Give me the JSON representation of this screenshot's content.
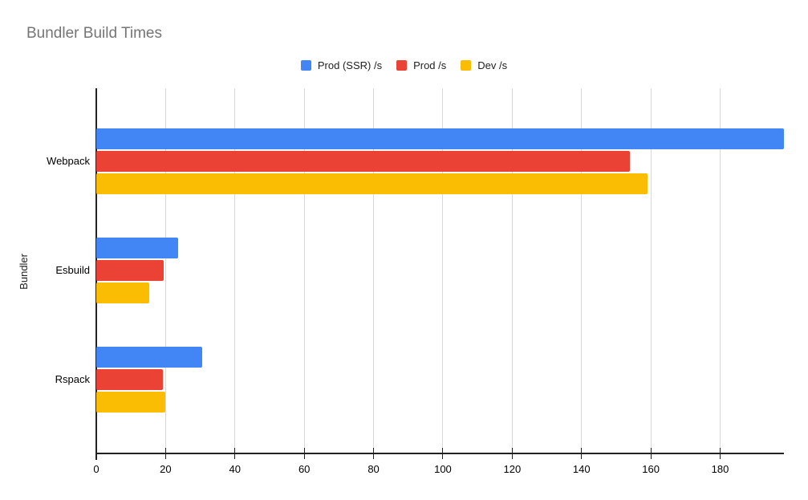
{
  "title": "Bundler Build Times",
  "chart_data": {
    "type": "bar",
    "orientation": "horizontal",
    "title": "Bundler Build Times",
    "xlabel": "",
    "ylabel": "Bundler",
    "categories": [
      "Webpack",
      "Esbuild",
      "Rspack"
    ],
    "series": [
      {
        "name": "Prod (SSR) /s",
        "color": "#4285f4",
        "values": [
          198.4,
          23.5,
          30.5
        ]
      },
      {
        "name": "Prod /s",
        "color": "#ea4335",
        "values": [
          154.0,
          19.5,
          19.2
        ]
      },
      {
        "name": "Dev /s",
        "color": "#fbbc04",
        "values": [
          159.0,
          15.3,
          19.9
        ]
      }
    ],
    "x_ticks": [
      0,
      20,
      40,
      60,
      80,
      100,
      120,
      140,
      160,
      180
    ],
    "xlim": [
      0,
      198.4
    ],
    "grid": true,
    "legend_position": "top"
  },
  "colors": {
    "background": "#ffffff",
    "title_text": "#757575",
    "axis_text": "#000000",
    "axis_line": "#212121",
    "gridline": "#d9d9d9",
    "series_blue": "#4285f4",
    "series_red": "#ea4335",
    "series_yellow": "#fbbc04"
  }
}
